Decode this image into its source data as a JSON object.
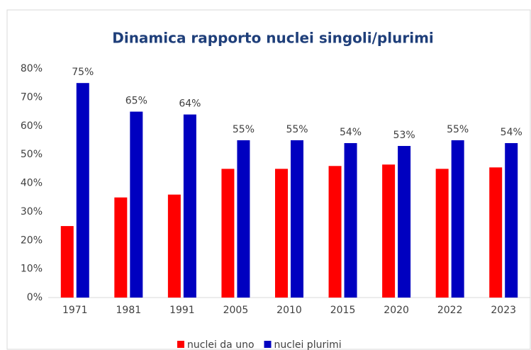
{
  "chart_data": {
    "type": "bar",
    "title": "Dinamica rapporto nuclei singoli/plurimi",
    "categories": [
      "1971",
      "1981",
      "1991",
      "2005",
      "2010",
      "2015",
      "2020",
      "2022",
      "2023"
    ],
    "series": [
      {
        "name": "nuclei da uno",
        "color": "#ff0000",
        "values": [
          25,
          35,
          36,
          45,
          45,
          46,
          46.5,
          45,
          45.5
        ]
      },
      {
        "name": "nuclei plurimi",
        "color": "#0000c0",
        "values": [
          75,
          65,
          64,
          55,
          55,
          54,
          53,
          55,
          54
        ],
        "value_labels": [
          "75%",
          "65%",
          "64%",
          "55%",
          "55%",
          "54%",
          "53%",
          "55%",
          "54%"
        ]
      }
    ],
    "ylim": [
      0,
      80
    ],
    "yticks": [
      {
        "value": 0,
        "label": "0%"
      },
      {
        "value": 10,
        "label": "10%"
      },
      {
        "value": 20,
        "label": "20%"
      },
      {
        "value": 30,
        "label": "30%"
      },
      {
        "value": 40,
        "label": "40%"
      },
      {
        "value": 50,
        "label": "50%"
      },
      {
        "value": 60,
        "label": "60%"
      },
      {
        "value": 70,
        "label": "70%"
      },
      {
        "value": 80,
        "label": "80%"
      }
    ],
    "grid": false,
    "legend": "bottom"
  }
}
